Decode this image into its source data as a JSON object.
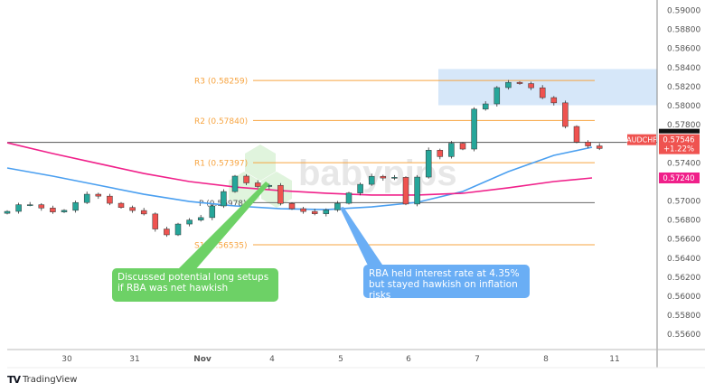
{
  "chart_data": {
    "type": "candlestick",
    "symbol": "AUDCHF",
    "last_price": "0.57546",
    "change": "+1.22%",
    "x_ticks": [
      "30",
      "31",
      "Nov",
      "4",
      "5",
      "6",
      "7",
      "8",
      "11"
    ],
    "y_ticks": [
      "0.59000",
      "0.58800",
      "0.58600",
      "0.58400",
      "0.58200",
      "0.58000",
      "0.57800",
      "0.57400",
      "0.57000",
      "0.56800",
      "0.56600",
      "0.56400",
      "0.56200",
      "0.56000",
      "0.55800",
      "0.55600"
    ],
    "ylim": [
      0.5545,
      0.591
    ],
    "closes": [
      0.56886,
      0.56956,
      0.56956,
      0.56921,
      0.5688,
      0.56897,
      0.56979,
      0.57066,
      0.57046,
      0.56971,
      0.56927,
      0.56895,
      0.56859,
      0.56701,
      0.5664,
      0.56753,
      0.56795,
      0.56821,
      0.56943,
      0.57094,
      0.57256,
      0.57185,
      0.57147,
      0.57159,
      0.56969,
      0.56914,
      0.56885,
      0.56861,
      0.56901,
      0.56971,
      0.57079,
      0.5717,
      0.57254,
      0.57236,
      0.57243,
      0.56963,
      0.57246,
      0.57528,
      0.57461,
      0.57601,
      0.5754,
      0.57959,
      0.58014,
      0.58185,
      0.5824,
      0.58227,
      0.58183,
      0.5808,
      0.58025,
      0.57777,
      0.57613,
      0.57573,
      0.57546
    ],
    "moving_averages": [
      {
        "color": "#4a9ff0",
        "values": [
          0.57341,
          0.57256,
          0.57161,
          0.57066,
          0.5699,
          0.56943,
          0.56914,
          0.56905,
          0.56933,
          0.56981,
          0.57095,
          0.57303,
          0.57474,
          0.57559
        ]
      },
      {
        "color": "#f0208a",
        "values": [
          0.57606,
          0.57493,
          0.57388,
          0.57284,
          0.57199,
          0.57142,
          0.57104,
          0.57076,
          0.57057,
          0.57057,
          0.57076,
          0.57133,
          0.57199,
          0.57237
        ],
        "label": "0.57240"
      }
    ],
    "horizontal_line": 0.5761,
    "pivots": [
      {
        "label": "R3 (0.58259)",
        "value": 0.58259
      },
      {
        "label": "R2 (0.57840)",
        "value": 0.5784
      },
      {
        "label": "R1 (0.57397)",
        "value": 0.57397
      },
      {
        "label": "P (0.56978)",
        "value": 0.56978
      },
      {
        "label": "S1 (0.56535)",
        "value": 0.56535
      }
    ],
    "zone": {
      "from": 0.58,
      "to": 0.5838,
      "color": "#cfe3f8"
    },
    "annotations": [
      {
        "text": "Discussed potential long setups if RBA was net hawkish",
        "color": "#6dd166"
      },
      {
        "text": "RBA held interest rate at 4.35% but stayed hawkish on inflation risks",
        "color": "#6aaef5"
      }
    ],
    "colors": {
      "up": "#26a69a",
      "down": "#ef5350",
      "pivot": "#f7a440",
      "price_label": "#ef5350"
    }
  },
  "watermark": "babypips",
  "footer": {
    "brand": "TradingView"
  }
}
